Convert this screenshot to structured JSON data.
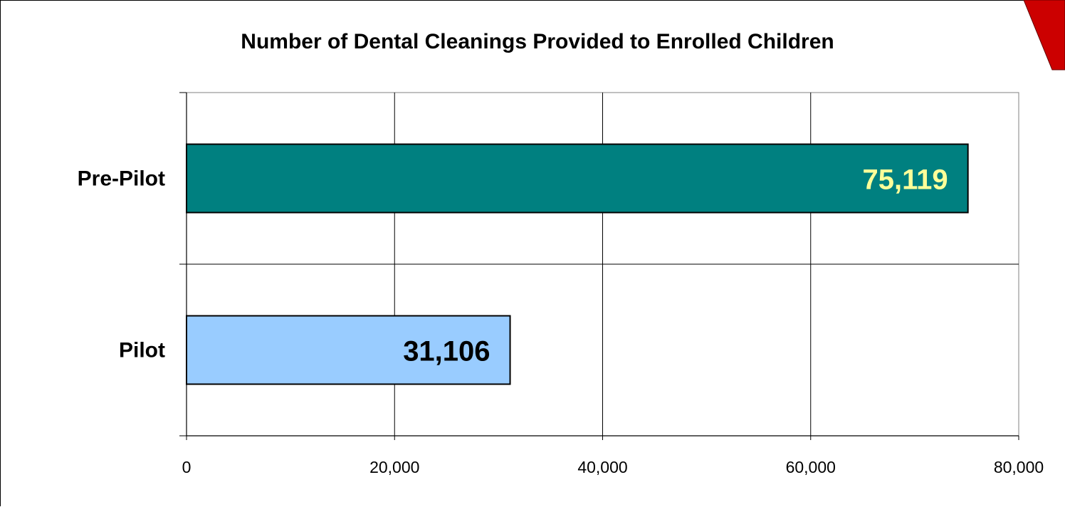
{
  "chart_data": {
    "type": "bar",
    "orientation": "horizontal",
    "title": "Number of Dental Cleanings Provided to Enrolled Children",
    "categories": [
      "Pre-Pilot",
      "Pilot"
    ],
    "values": [
      75119,
      31106
    ],
    "data_labels": [
      "75,119",
      "31,106"
    ],
    "bar_colors": [
      "#008080",
      "#99ccff"
    ],
    "data_label_colors": [
      "#ffff99",
      "#000000"
    ],
    "xlabel": "",
    "ylabel": "",
    "xlim": [
      0,
      80000
    ],
    "x_ticks": [
      0,
      20000,
      40000,
      60000,
      80000
    ],
    "x_tick_labels": [
      "0",
      "20,000",
      "40,000",
      "60,000",
      "80,000"
    ],
    "grid": true,
    "legend": "none"
  },
  "decoration": {
    "corner_shape_color": "#cc0000"
  }
}
